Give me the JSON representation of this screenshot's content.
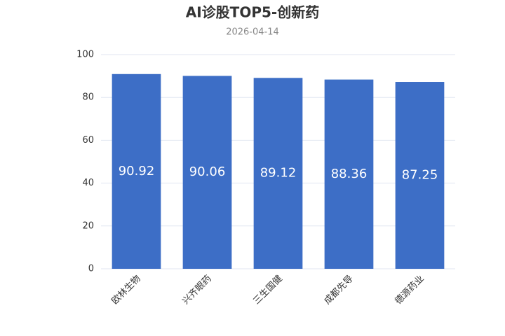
{
  "chart_data": {
    "type": "bar",
    "title": "AI诊股TOP5-创新药",
    "subtitle": "2026-04-14",
    "categories": [
      "欧林生物",
      "兴齐眼药",
      "三生国健",
      "成都先导",
      "德源药业"
    ],
    "values": [
      90.92,
      90.06,
      89.12,
      88.36,
      87.25
    ],
    "color": "#3d6ec6",
    "ylim": [
      0,
      100
    ],
    "yticks": [
      0,
      20,
      40,
      60,
      80,
      100
    ],
    "grid": true
  }
}
